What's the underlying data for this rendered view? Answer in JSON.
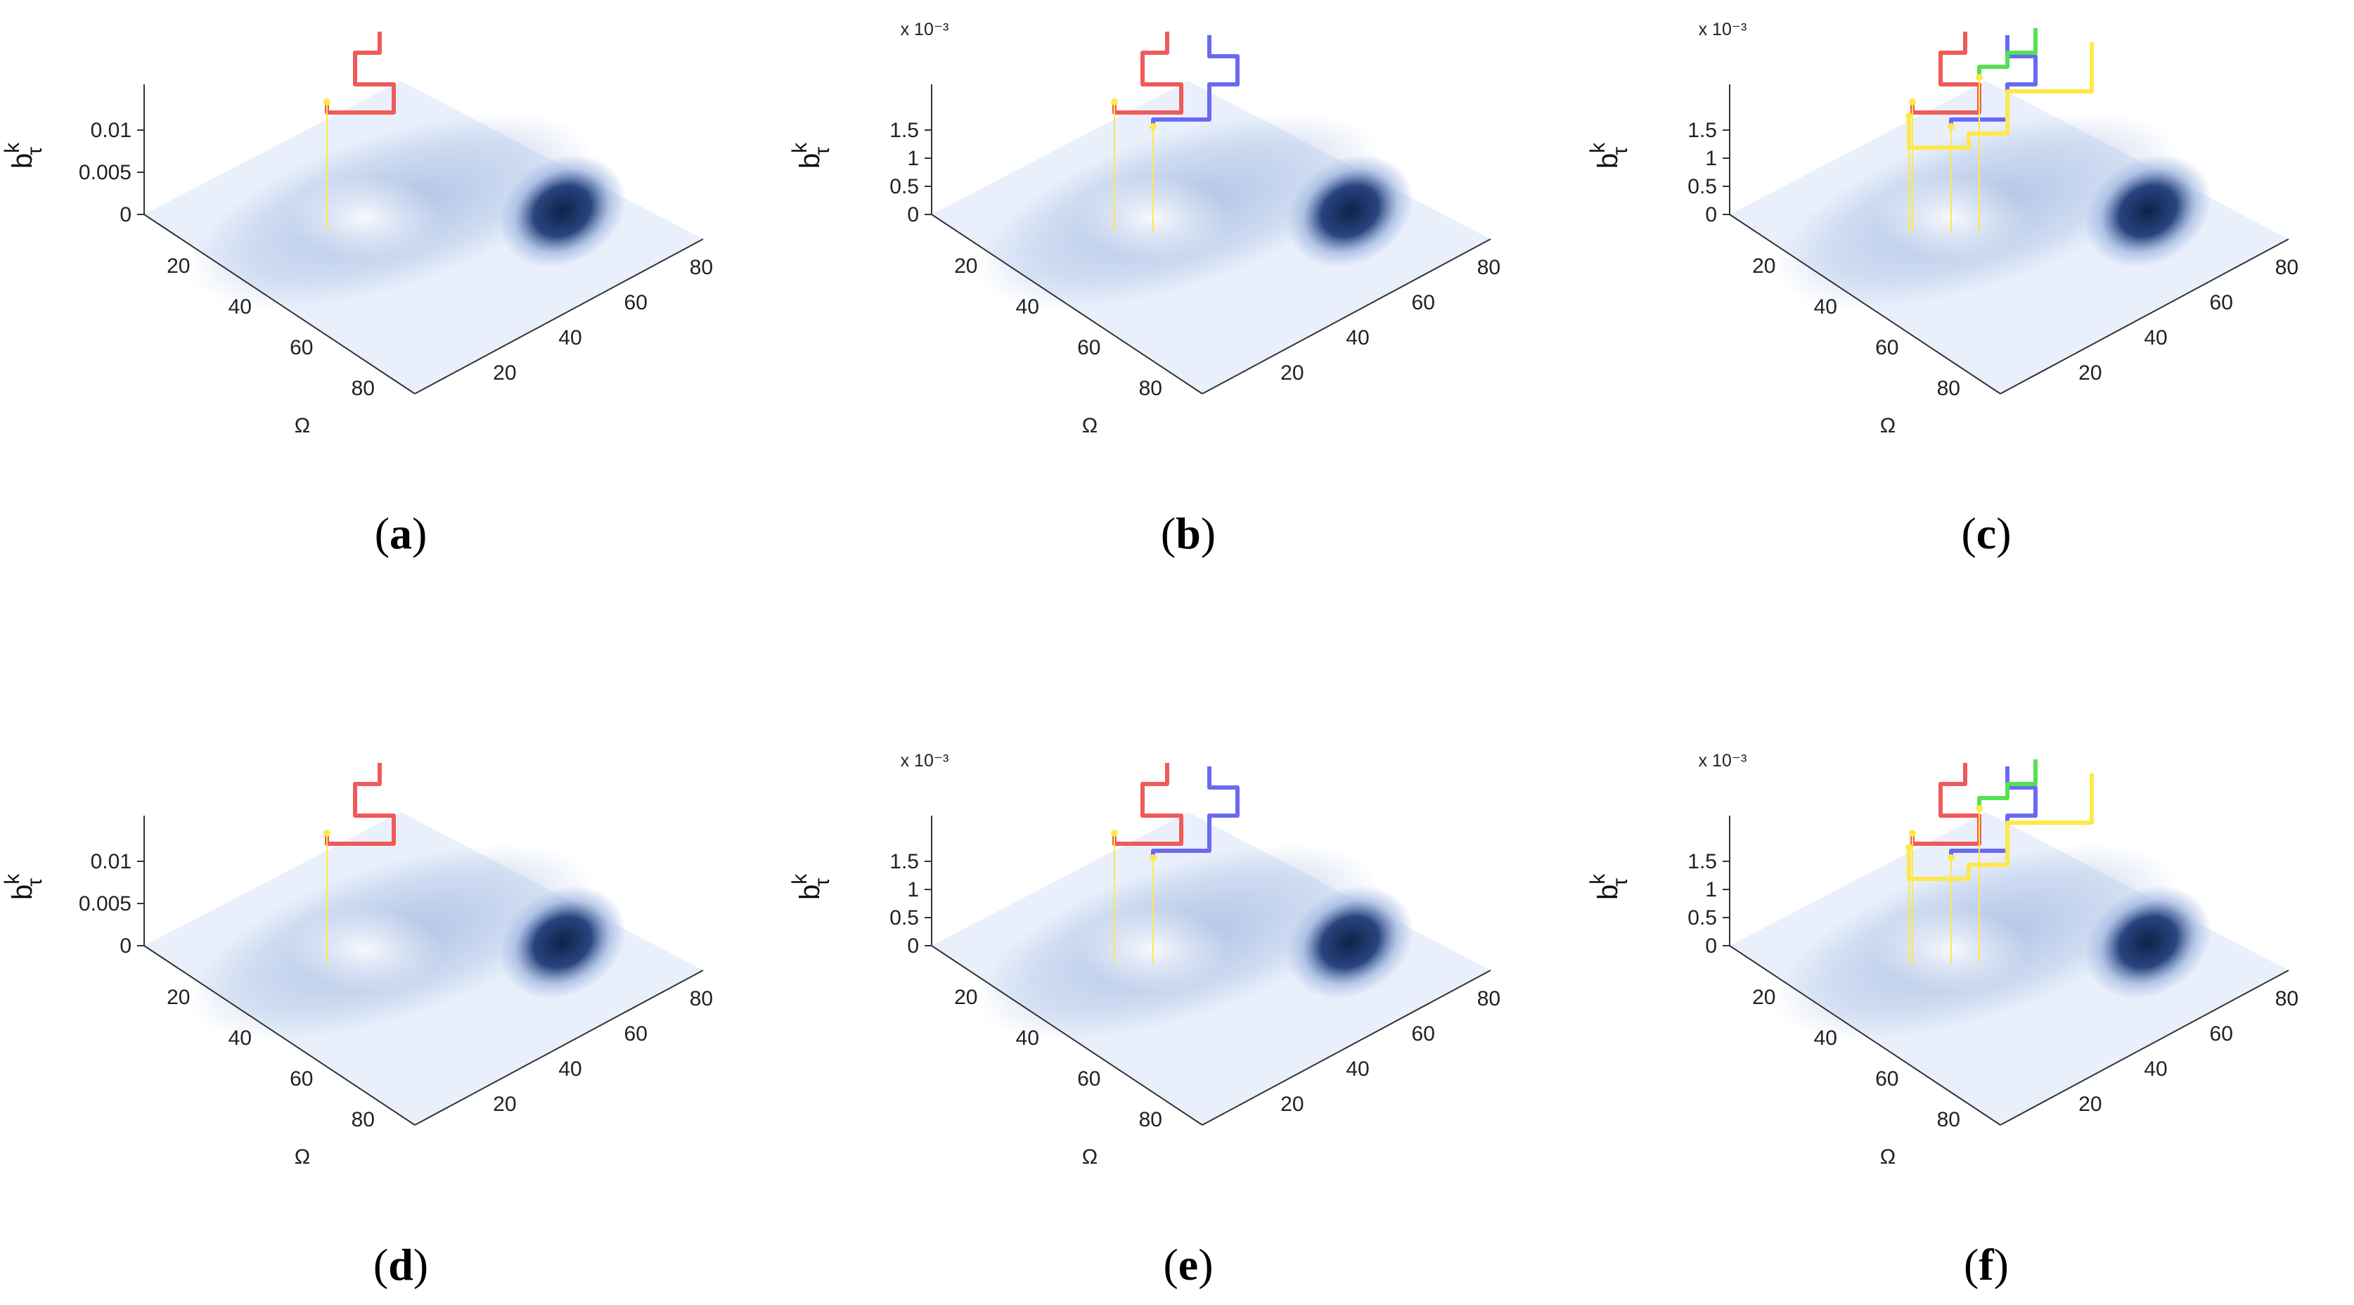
{
  "figure": {
    "panels": [
      {
        "caption": "a",
        "zticks": [
          "0",
          "0.005",
          "0.01"
        ],
        "scale": ""
      },
      {
        "caption": "b",
        "zticks": [
          "0",
          "0.5",
          "1",
          "1.5"
        ],
        "scale": "x 10⁻³"
      },
      {
        "caption": "c",
        "zticks": [
          "0",
          "0.5",
          "1",
          "1.5"
        ],
        "scale": "x 10⁻³"
      },
      {
        "caption": "d",
        "zticks": [
          "0",
          "0.005",
          "0.01"
        ],
        "scale": ""
      },
      {
        "caption": "e",
        "zticks": [
          "0",
          "0.5",
          "1",
          "1.5"
        ],
        "scale": "x 10⁻³"
      },
      {
        "caption": "f",
        "zticks": [
          "0",
          "0.5",
          "1",
          "1.5"
        ],
        "scale": "x 10⁻³"
      }
    ]
  },
  "chart_data": {
    "type": "surface",
    "zlabel_base": "b",
    "zlabel_sup": "k",
    "zlabel_sub": "τ",
    "xlabel": "Ω",
    "x_ticks": [
      "20",
      "40",
      "60",
      "80"
    ],
    "y_ticks": [
      "20",
      "40",
      "60",
      "80"
    ],
    "colors": {
      "surface_light": "#e9f0fb",
      "surface_mid": "#9fb6e0",
      "surface_dark": "#0e2148",
      "path_red": "#f05a5a",
      "path_blue": "#6a6af0",
      "path_green": "#55e055",
      "path_yellow": "#ffe84a"
    },
    "paths": [
      [
        "red"
      ],
      [
        "red",
        "blue"
      ],
      [
        "red",
        "blue",
        "green",
        "yellow"
      ],
      [
        "red"
      ],
      [
        "red",
        "blue"
      ],
      [
        "red",
        "blue",
        "green",
        "yellow"
      ]
    ]
  }
}
